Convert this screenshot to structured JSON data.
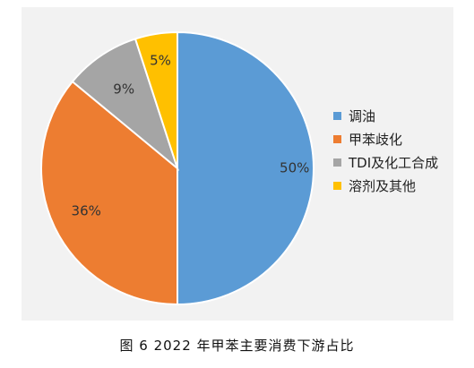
{
  "chart_data": {
    "type": "pie",
    "title": "",
    "categories": [
      "调油",
      "甲苯歧化",
      "TDI及化工合成",
      "溶剂及其他"
    ],
    "values": [
      50,
      36,
      9,
      5
    ],
    "data_labels": [
      "50%",
      "36%",
      "9%",
      "5%"
    ],
    "colors": [
      "#5b9bd5",
      "#ed7d31",
      "#a5a5a5",
      "#ffc000"
    ],
    "legend_position": "right",
    "start_angle": "12 o'clock",
    "direction": "clockwise"
  },
  "legend": {
    "items": [
      {
        "label": "调油",
        "color": "#5b9bd5"
      },
      {
        "label": "甲苯歧化",
        "color": "#ed7d31"
      },
      {
        "label": "TDI及化工合成",
        "color": "#a5a5a5"
      },
      {
        "label": "溶剂及其他",
        "color": "#ffc000"
      }
    ]
  },
  "caption": "图 6  2022 年甲苯主要消费下游占比"
}
